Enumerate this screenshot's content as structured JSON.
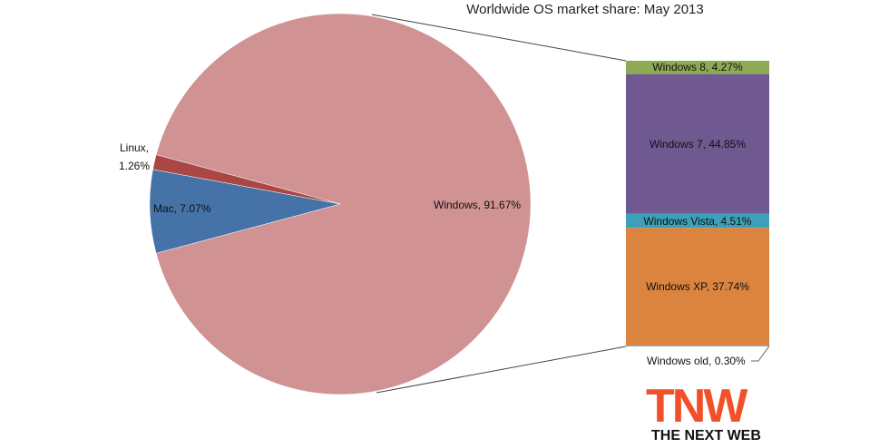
{
  "chart_data": [
    {
      "type": "pie",
      "title": "Worldwide OS market share: May 2013",
      "values": [
        91.67,
        7.07,
        1.26
      ],
      "value_labels": [
        "Windows, 91.67%",
        "Mac, 7.07%",
        "Linux, 1.26%"
      ],
      "colors": [
        "#d09292",
        "#4572a7",
        "#aa4643"
      ]
    },
    {
      "type": "bar",
      "stacked": true,
      "values": [
        4.27,
        44.85,
        4.51,
        37.74,
        0.3
      ],
      "value_labels": [
        "Windows 8, 4.27%",
        "Windows 7, 44.85%",
        "Windows Vista, 4.51%",
        "Windows XP, 37.74%",
        "Windows old, 0.30%"
      ],
      "colors": [
        "#8faa55",
        "#705891",
        "#3ea0b8",
        "#db8440",
        "#8aa7d0"
      ]
    }
  ],
  "logo": {
    "mark": "TNW",
    "tagline": "THE NEXT WEB"
  }
}
